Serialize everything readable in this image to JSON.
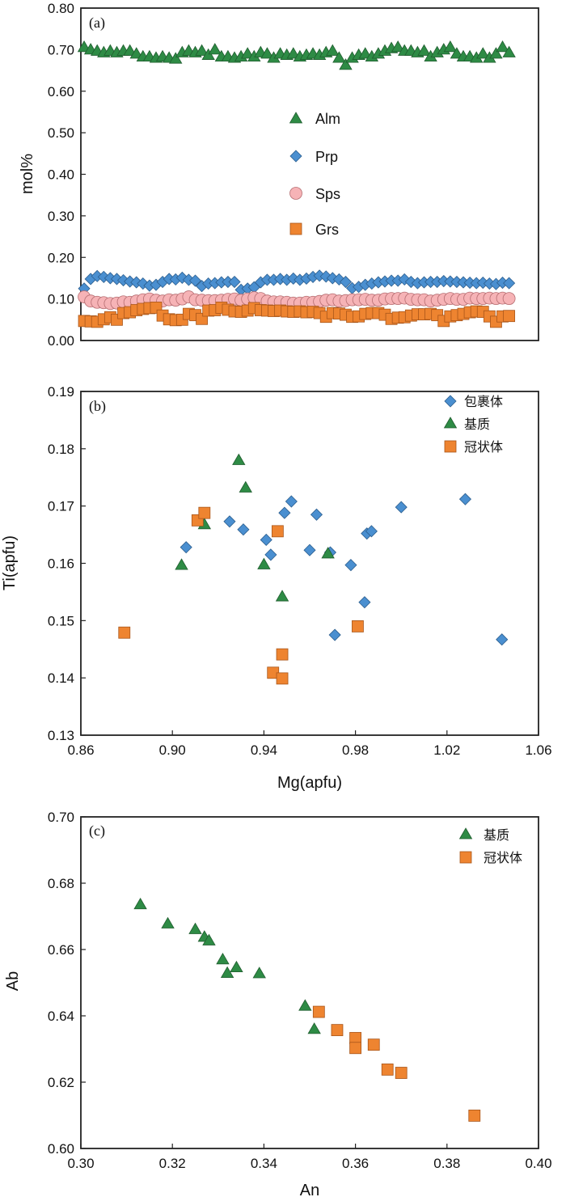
{
  "figure": {
    "colors": {
      "alm": "#2e8b45",
      "prp": "#4a8fd0",
      "sps": "#f6b3b6",
      "grs": "#ee8430",
      "inclusion": "#4a8fd0",
      "matrix": "#2e8b45",
      "corona": "#ee8430"
    }
  },
  "chart_data": [
    {
      "id": "a",
      "type": "scatter",
      "panel_label": "(a)",
      "title": "",
      "xlabel": "",
      "ylabel": "mol%",
      "xlim": [
        0,
        70
      ],
      "ylim": [
        0,
        0.8
      ],
      "yticks": [
        "0.00",
        "0.10",
        "0.20",
        "0.30",
        "0.40",
        "0.50",
        "0.60",
        "0.70",
        "0.80"
      ],
      "xticks_visible": false,
      "legend_position": "center",
      "series": [
        {
          "name": "Alm",
          "marker": "triangle",
          "color_key": "alm",
          "values": [
            0.706,
            0.7,
            0.697,
            0.693,
            0.697,
            0.693,
            0.697,
            0.697,
            0.69,
            0.683,
            0.683,
            0.68,
            0.683,
            0.68,
            0.678,
            0.693,
            0.697,
            0.693,
            0.697,
            0.687,
            0.7,
            0.683,
            0.683,
            0.68,
            0.683,
            0.69,
            0.683,
            0.693,
            0.69,
            0.68,
            0.69,
            0.687,
            0.69,
            0.683,
            0.687,
            0.69,
            0.687,
            0.693,
            0.697,
            0.68,
            0.663,
            0.68,
            0.687,
            0.69,
            0.683,
            0.69,
            0.697,
            0.703,
            0.706,
            0.697,
            0.697,
            0.693,
            0.697,
            0.683,
            0.693,
            0.7,
            0.706,
            0.69,
            0.683,
            0.683,
            0.68,
            0.69,
            0.68,
            0.69,
            0.706,
            0.693
          ]
        },
        {
          "name": "Prp",
          "marker": "diamond",
          "color_key": "prp",
          "values": [
            0.125,
            0.148,
            0.155,
            0.153,
            0.15,
            0.148,
            0.145,
            0.142,
            0.14,
            0.137,
            0.132,
            0.134,
            0.141,
            0.148,
            0.147,
            0.151,
            0.146,
            0.144,
            0.131,
            0.137,
            0.138,
            0.14,
            0.141,
            0.141,
            0.122,
            0.125,
            0.128,
            0.14,
            0.146,
            0.146,
            0.148,
            0.146,
            0.149,
            0.146,
            0.149,
            0.153,
            0.156,
            0.154,
            0.15,
            0.147,
            0.141,
            0.126,
            0.129,
            0.134,
            0.137,
            0.14,
            0.142,
            0.144,
            0.144,
            0.147,
            0.141,
            0.138,
            0.14,
            0.141,
            0.141,
            0.143,
            0.142,
            0.141,
            0.14,
            0.139,
            0.138,
            0.139,
            0.137,
            0.136,
            0.139,
            0.138
          ]
        },
        {
          "name": "Sps",
          "marker": "circle",
          "color_key": "sps",
          "values": [
            0.105,
            0.095,
            0.092,
            0.091,
            0.089,
            0.09,
            0.093,
            0.092,
            0.095,
            0.098,
            0.1,
            0.097,
            0.095,
            0.098,
            0.097,
            0.1,
            0.105,
            0.098,
            0.097,
            0.096,
            0.096,
            0.097,
            0.099,
            0.1,
            0.097,
            0.1,
            0.103,
            0.101,
            0.095,
            0.093,
            0.093,
            0.092,
            0.09,
            0.09,
            0.092,
            0.092,
            0.094,
            0.097,
            0.098,
            0.095,
            0.096,
            0.098,
            0.098,
            0.099,
            0.097,
            0.097,
            0.1,
            0.101,
            0.101,
            0.102,
            0.099,
            0.098,
            0.098,
            0.095,
            0.097,
            0.099,
            0.101,
            0.099,
            0.099,
            0.102,
            0.101,
            0.101,
            0.102,
            0.101,
            0.102,
            0.101
          ]
        },
        {
          "name": "Grs",
          "marker": "square",
          "color_key": "grs",
          "values": [
            0.047,
            0.046,
            0.045,
            0.051,
            0.056,
            0.05,
            0.066,
            0.068,
            0.073,
            0.076,
            0.078,
            0.079,
            0.06,
            0.051,
            0.049,
            0.05,
            0.064,
            0.061,
            0.052,
            0.072,
            0.073,
            0.079,
            0.074,
            0.07,
            0.069,
            0.072,
            0.078,
            0.073,
            0.072,
            0.071,
            0.072,
            0.07,
            0.069,
            0.07,
            0.068,
            0.069,
            0.066,
            0.057,
            0.066,
            0.065,
            0.062,
            0.057,
            0.058,
            0.064,
            0.066,
            0.066,
            0.062,
            0.052,
            0.055,
            0.056,
            0.06,
            0.063,
            0.063,
            0.064,
            0.061,
            0.047,
            0.058,
            0.061,
            0.064,
            0.068,
            0.07,
            0.069,
            0.058,
            0.045,
            0.058,
            0.059
          ]
        }
      ]
    },
    {
      "id": "b",
      "type": "scatter",
      "panel_label": "(b)",
      "title": "",
      "xlabel": "Mg(apfu)",
      "ylabel": "Ti(apfu)",
      "xlim": [
        0.86,
        1.06
      ],
      "ylim": [
        0.13,
        0.19
      ],
      "xticks": [
        "0.86",
        "0.90",
        "0.94",
        "0.98",
        "1.02",
        "1.06"
      ],
      "yticks": [
        "0.13",
        "0.14",
        "0.15",
        "0.16",
        "0.17",
        "0.18",
        "0.19"
      ],
      "legend_position": "top-right",
      "series": [
        {
          "name": "包裹体",
          "marker": "diamond",
          "color_key": "inclusion",
          "points": [
            [
              0.906,
              0.1628
            ],
            [
              0.925,
              0.1673
            ],
            [
              0.931,
              0.1659
            ],
            [
              0.941,
              0.1641
            ],
            [
              0.943,
              0.1615
            ],
            [
              0.949,
              0.1688
            ],
            [
              0.952,
              0.1708
            ],
            [
              0.96,
              0.1623
            ],
            [
              0.963,
              0.1685
            ],
            [
              0.969,
              0.1619
            ],
            [
              0.971,
              0.1475
            ],
            [
              0.978,
              0.1597
            ],
            [
              0.984,
              0.1532
            ],
            [
              0.985,
              0.1652
            ],
            [
              0.987,
              0.1656
            ],
            [
              1.0,
              0.1698
            ],
            [
              1.028,
              0.1712
            ],
            [
              1.044,
              0.1467
            ]
          ]
        },
        {
          "name": "基质",
          "marker": "triangle",
          "color_key": "matrix",
          "points": [
            [
              0.904,
              0.1597
            ],
            [
              0.914,
              0.1668
            ],
            [
              0.929,
              0.178
            ],
            [
              0.932,
              0.1732
            ],
            [
              0.94,
              0.1598
            ],
            [
              0.948,
              0.1542
            ],
            [
              0.968,
              0.1617
            ]
          ]
        },
        {
          "name": "冠状体",
          "marker": "square",
          "color_key": "corona",
          "points": [
            [
              0.879,
              0.1479
            ],
            [
              0.911,
              0.1675
            ],
            [
              0.914,
              0.1688
            ],
            [
              0.944,
              0.1409
            ],
            [
              0.946,
              0.1656
            ],
            [
              0.948,
              0.1441
            ],
            [
              0.948,
              0.1399
            ],
            [
              0.981,
              0.149
            ]
          ]
        }
      ]
    },
    {
      "id": "c",
      "type": "scatter",
      "panel_label": "(c)",
      "title": "",
      "xlabel": "An",
      "ylabel": "Ab",
      "xlim": [
        0.3,
        0.4
      ],
      "ylim": [
        0.6,
        0.7
      ],
      "xticks": [
        "0.30",
        "0.32",
        "0.34",
        "0.36",
        "0.38",
        "0.40"
      ],
      "yticks": [
        "0.60",
        "0.62",
        "0.64",
        "0.66",
        "0.68",
        "0.70"
      ],
      "legend_position": "top-right",
      "series": [
        {
          "name": "基质",
          "marker": "triangle",
          "color_key": "matrix",
          "points": [
            [
              0.313,
              0.6736
            ],
            [
              0.319,
              0.6678
            ],
            [
              0.325,
              0.6661
            ],
            [
              0.327,
              0.6638
            ],
            [
              0.328,
              0.6627
            ],
            [
              0.331,
              0.657
            ],
            [
              0.332,
              0.6529
            ],
            [
              0.334,
              0.6546
            ],
            [
              0.339,
              0.6528
            ],
            [
              0.349,
              0.643
            ],
            [
              0.351,
              0.636
            ]
          ]
        },
        {
          "name": "冠状体",
          "marker": "square",
          "color_key": "corona",
          "points": [
            [
              0.352,
              0.6412
            ],
            [
              0.356,
              0.6357
            ],
            [
              0.36,
              0.6333
            ],
            [
              0.36,
              0.6303
            ],
            [
              0.364,
              0.6313
            ],
            [
              0.367,
              0.6238
            ],
            [
              0.37,
              0.6228
            ],
            [
              0.386,
              0.6099
            ]
          ]
        }
      ]
    }
  ]
}
